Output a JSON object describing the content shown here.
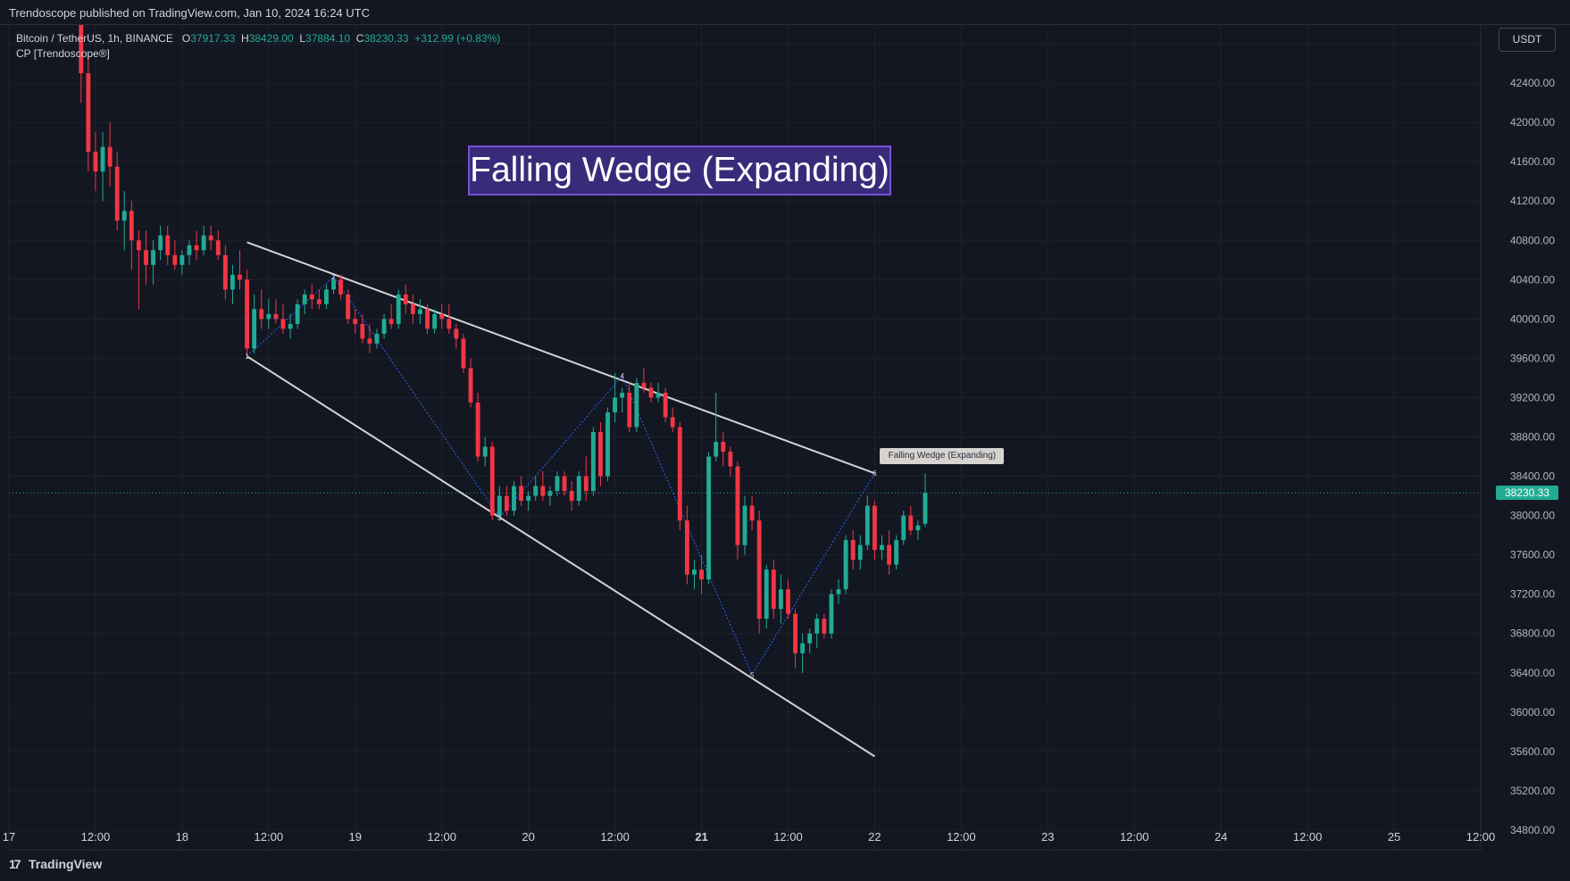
{
  "header": {
    "publish_line": "Trendoscope published on TradingView.com, Jan 10, 2024 16:24 UTC"
  },
  "legend": {
    "symbol": "Bitcoin / TetherUS, 1h, BINANCE",
    "open_label": "O",
    "open_value": "37917.33",
    "high_label": "H",
    "high_value": "38429.00",
    "low_label": "L",
    "low_value": "37884.10",
    "close_label": "C",
    "close_value": "38230.33",
    "change": "+312.99 (+0.83%)",
    "indicator": "CP [Trendoscope®]"
  },
  "currency_button": "USDT",
  "watermark": "TradingView",
  "colors": {
    "background": "#131722",
    "grid": "#1e222d",
    "up": "#22ab94",
    "down": "#f23645",
    "wedge_lines": "#d6d3d0",
    "zigzag": "#2962ff",
    "pattern_label_bg": "#3a2b7a",
    "pattern_label_border": "#7b4fd8"
  },
  "chart_data": {
    "type": "candlestick",
    "title": "Falling Wedge (Expanding)",
    "pattern_tag": "Falling Wedge (Expanding)",
    "last_price": "38230.33",
    "ylim": [
      34600,
      43000
    ],
    "y_ticks": [
      "42800.00",
      "42400.00",
      "42000.00",
      "41600.00",
      "41200.00",
      "40800.00",
      "40400.00",
      "40000.00",
      "39600.00",
      "39200.00",
      "38800.00",
      "38400.00",
      "38000.00",
      "37600.00",
      "37200.00",
      "36800.00",
      "36400.00",
      "36000.00",
      "35600.00",
      "35200.00",
      "34800.00"
    ],
    "x_ticks": [
      "17",
      "12:00",
      "18",
      "12:00",
      "19",
      "12:00",
      "20",
      "12:00",
      "21",
      "12:00",
      "22",
      "12:00",
      "23",
      "12:00",
      "24",
      "12:00",
      "25",
      "12:00"
    ],
    "x_range_hours": [
      0,
      204
    ],
    "upper_line": {
      "start": [
        33,
        40780
      ],
      "end": [
        120,
        38430
      ]
    },
    "lower_line": {
      "start": [
        33,
        39620
      ],
      "end": [
        120,
        35550
      ]
    },
    "zigzag_points": [
      {
        "label": "1",
        "x": 33,
        "y": 39620
      },
      {
        "label": "2",
        "x": 45,
        "y": 40430
      },
      {
        "label": "3",
        "x": 68,
        "y": 37980
      },
      {
        "label": "4",
        "x": 85,
        "y": 39420
      },
      {
        "label": "5",
        "x": 103,
        "y": 36380
      },
      {
        "label": "6",
        "x": 120,
        "y": 38430
      }
    ],
    "candles": [
      {
        "t": 10,
        "o": 43100,
        "h": 43200,
        "l": 42200,
        "c": 42500
      },
      {
        "t": 11,
        "o": 42500,
        "h": 42700,
        "l": 41500,
        "c": 41700
      },
      {
        "t": 12,
        "o": 41700,
        "h": 41900,
        "l": 41300,
        "c": 41500
      },
      {
        "t": 13,
        "o": 41500,
        "h": 41900,
        "l": 41200,
        "c": 41750
      },
      {
        "t": 14,
        "o": 41750,
        "h": 42000,
        "l": 41350,
        "c": 41550
      },
      {
        "t": 15,
        "o": 41550,
        "h": 41700,
        "l": 40900,
        "c": 41000
      },
      {
        "t": 16,
        "o": 41000,
        "h": 41300,
        "l": 40700,
        "c": 41100
      },
      {
        "t": 17,
        "o": 41100,
        "h": 41200,
        "l": 40500,
        "c": 40800
      },
      {
        "t": 18,
        "o": 40800,
        "h": 40900,
        "l": 40100,
        "c": 40700
      },
      {
        "t": 19,
        "o": 40700,
        "h": 40900,
        "l": 40350,
        "c": 40550
      },
      {
        "t": 20,
        "o": 40550,
        "h": 40800,
        "l": 40350,
        "c": 40700
      },
      {
        "t": 21,
        "o": 40700,
        "h": 40950,
        "l": 40600,
        "c": 40850
      },
      {
        "t": 22,
        "o": 40850,
        "h": 40950,
        "l": 40550,
        "c": 40650
      },
      {
        "t": 23,
        "o": 40650,
        "h": 40800,
        "l": 40500,
        "c": 40550
      },
      {
        "t": 24,
        "o": 40550,
        "h": 40700,
        "l": 40450,
        "c": 40650
      },
      {
        "t": 25,
        "o": 40650,
        "h": 40800,
        "l": 40550,
        "c": 40750
      },
      {
        "t": 26,
        "o": 40750,
        "h": 40900,
        "l": 40600,
        "c": 40700
      },
      {
        "t": 27,
        "o": 40700,
        "h": 40950,
        "l": 40650,
        "c": 40850
      },
      {
        "t": 28,
        "o": 40850,
        "h": 40950,
        "l": 40700,
        "c": 40800
      },
      {
        "t": 29,
        "o": 40800,
        "h": 40900,
        "l": 40600,
        "c": 40650
      },
      {
        "t": 30,
        "o": 40650,
        "h": 40750,
        "l": 40200,
        "c": 40300
      },
      {
        "t": 31,
        "o": 40300,
        "h": 40550,
        "l": 40150,
        "c": 40450
      },
      {
        "t": 32,
        "o": 40450,
        "h": 40700,
        "l": 40300,
        "c": 40400
      },
      {
        "t": 33,
        "o": 40400,
        "h": 40500,
        "l": 39600,
        "c": 39700
      },
      {
        "t": 34,
        "o": 39700,
        "h": 40250,
        "l": 39650,
        "c": 40100
      },
      {
        "t": 35,
        "o": 40100,
        "h": 40300,
        "l": 39900,
        "c": 40000
      },
      {
        "t": 36,
        "o": 40000,
        "h": 40200,
        "l": 39900,
        "c": 40050
      },
      {
        "t": 37,
        "o": 40050,
        "h": 40200,
        "l": 39950,
        "c": 40000
      },
      {
        "t": 38,
        "o": 40000,
        "h": 40150,
        "l": 39850,
        "c": 39900
      },
      {
        "t": 39,
        "o": 39900,
        "h": 40050,
        "l": 39800,
        "c": 39950
      },
      {
        "t": 40,
        "o": 39950,
        "h": 40200,
        "l": 39900,
        "c": 40150
      },
      {
        "t": 41,
        "o": 40150,
        "h": 40300,
        "l": 40050,
        "c": 40250
      },
      {
        "t": 42,
        "o": 40250,
        "h": 40350,
        "l": 40100,
        "c": 40200
      },
      {
        "t": 43,
        "o": 40200,
        "h": 40300,
        "l": 40100,
        "c": 40150
      },
      {
        "t": 44,
        "o": 40150,
        "h": 40350,
        "l": 40100,
        "c": 40300
      },
      {
        "t": 45,
        "o": 40300,
        "h": 40450,
        "l": 40250,
        "c": 40400
      },
      {
        "t": 46,
        "o": 40400,
        "h": 40450,
        "l": 40200,
        "c": 40250
      },
      {
        "t": 47,
        "o": 40250,
        "h": 40300,
        "l": 39950,
        "c": 40000
      },
      {
        "t": 48,
        "o": 40000,
        "h": 40100,
        "l": 39850,
        "c": 39950
      },
      {
        "t": 49,
        "o": 39950,
        "h": 40050,
        "l": 39750,
        "c": 39800
      },
      {
        "t": 50,
        "o": 39800,
        "h": 39950,
        "l": 39650,
        "c": 39750
      },
      {
        "t": 51,
        "o": 39750,
        "h": 39900,
        "l": 39700,
        "c": 39850
      },
      {
        "t": 52,
        "o": 39850,
        "h": 40050,
        "l": 39800,
        "c": 40000
      },
      {
        "t": 53,
        "o": 40000,
        "h": 40150,
        "l": 39900,
        "c": 39950
      },
      {
        "t": 54,
        "o": 39950,
        "h": 40300,
        "l": 39900,
        "c": 40250
      },
      {
        "t": 55,
        "o": 40250,
        "h": 40350,
        "l": 40050,
        "c": 40150
      },
      {
        "t": 56,
        "o": 40150,
        "h": 40250,
        "l": 39950,
        "c": 40050
      },
      {
        "t": 57,
        "o": 40050,
        "h": 40200,
        "l": 39950,
        "c": 40100
      },
      {
        "t": 58,
        "o": 40100,
        "h": 40150,
        "l": 39850,
        "c": 39900
      },
      {
        "t": 59,
        "o": 39900,
        "h": 40100,
        "l": 39850,
        "c": 40050
      },
      {
        "t": 60,
        "o": 40050,
        "h": 40150,
        "l": 39900,
        "c": 40000
      },
      {
        "t": 61,
        "o": 40000,
        "h": 40150,
        "l": 39850,
        "c": 39900
      },
      {
        "t": 62,
        "o": 39900,
        "h": 39950,
        "l": 39700,
        "c": 39800
      },
      {
        "t": 63,
        "o": 39800,
        "h": 39850,
        "l": 39450,
        "c": 39500
      },
      {
        "t": 64,
        "o": 39500,
        "h": 39600,
        "l": 39100,
        "c": 39150
      },
      {
        "t": 65,
        "o": 39150,
        "h": 39250,
        "l": 38550,
        "c": 38600
      },
      {
        "t": 66,
        "o": 38600,
        "h": 38800,
        "l": 38500,
        "c": 38700
      },
      {
        "t": 67,
        "o": 38700,
        "h": 38750,
        "l": 37950,
        "c": 38000
      },
      {
        "t": 68,
        "o": 38000,
        "h": 38300,
        "l": 37950,
        "c": 38200
      },
      {
        "t": 69,
        "o": 38200,
        "h": 38300,
        "l": 38000,
        "c": 38050
      },
      {
        "t": 70,
        "o": 38050,
        "h": 38350,
        "l": 38000,
        "c": 38300
      },
      {
        "t": 71,
        "o": 38300,
        "h": 38400,
        "l": 38100,
        "c": 38150
      },
      {
        "t": 72,
        "o": 38150,
        "h": 38250,
        "l": 38050,
        "c": 38200
      },
      {
        "t": 73,
        "o": 38200,
        "h": 38400,
        "l": 38150,
        "c": 38300
      },
      {
        "t": 74,
        "o": 38300,
        "h": 38450,
        "l": 38150,
        "c": 38200
      },
      {
        "t": 75,
        "o": 38200,
        "h": 38300,
        "l": 38100,
        "c": 38250
      },
      {
        "t": 76,
        "o": 38250,
        "h": 38450,
        "l": 38200,
        "c": 38400
      },
      {
        "t": 77,
        "o": 38400,
        "h": 38450,
        "l": 38200,
        "c": 38250
      },
      {
        "t": 78,
        "o": 38250,
        "h": 38350,
        "l": 38050,
        "c": 38150
      },
      {
        "t": 79,
        "o": 38150,
        "h": 38450,
        "l": 38100,
        "c": 38400
      },
      {
        "t": 80,
        "o": 38400,
        "h": 38600,
        "l": 38150,
        "c": 38250
      },
      {
        "t": 81,
        "o": 38250,
        "h": 38900,
        "l": 38200,
        "c": 38850
      },
      {
        "t": 82,
        "o": 38850,
        "h": 38950,
        "l": 38300,
        "c": 38400
      },
      {
        "t": 83,
        "o": 38400,
        "h": 39100,
        "l": 38350,
        "c": 39050
      },
      {
        "t": 84,
        "o": 39050,
        "h": 39450,
        "l": 38950,
        "c": 39200
      },
      {
        "t": 85,
        "o": 39200,
        "h": 39300,
        "l": 39050,
        "c": 39250
      },
      {
        "t": 86,
        "o": 39250,
        "h": 39350,
        "l": 38850,
        "c": 38900
      },
      {
        "t": 87,
        "o": 38900,
        "h": 39400,
        "l": 38850,
        "c": 39350
      },
      {
        "t": 88,
        "o": 39350,
        "h": 39500,
        "l": 39250,
        "c": 39300
      },
      {
        "t": 89,
        "o": 39300,
        "h": 39350,
        "l": 39150,
        "c": 39200
      },
      {
        "t": 90,
        "o": 39200,
        "h": 39350,
        "l": 39150,
        "c": 39250
      },
      {
        "t": 91,
        "o": 39250,
        "h": 39300,
        "l": 38950,
        "c": 39000
      },
      {
        "t": 92,
        "o": 39000,
        "h": 39100,
        "l": 38850,
        "c": 38900
      },
      {
        "t": 93,
        "o": 38900,
        "h": 38950,
        "l": 37850,
        "c": 37950
      },
      {
        "t": 94,
        "o": 37950,
        "h": 38100,
        "l": 37300,
        "c": 37400
      },
      {
        "t": 95,
        "o": 37400,
        "h": 37550,
        "l": 37250,
        "c": 37450
      },
      {
        "t": 96,
        "o": 37450,
        "h": 37600,
        "l": 37200,
        "c": 37350
      },
      {
        "t": 97,
        "o": 37350,
        "h": 38650,
        "l": 37300,
        "c": 38600
      },
      {
        "t": 98,
        "o": 38600,
        "h": 39250,
        "l": 38550,
        "c": 38750
      },
      {
        "t": 99,
        "o": 38750,
        "h": 38850,
        "l": 38500,
        "c": 38650
      },
      {
        "t": 100,
        "o": 38650,
        "h": 38700,
        "l": 38400,
        "c": 38500
      },
      {
        "t": 101,
        "o": 38500,
        "h": 38550,
        "l": 37550,
        "c": 37700
      },
      {
        "t": 102,
        "o": 37700,
        "h": 38200,
        "l": 37600,
        "c": 38100
      },
      {
        "t": 103,
        "o": 38100,
        "h": 38200,
        "l": 37850,
        "c": 37950
      },
      {
        "t": 104,
        "o": 37950,
        "h": 38050,
        "l": 36800,
        "c": 36950
      },
      {
        "t": 105,
        "o": 36950,
        "h": 37500,
        "l": 36850,
        "c": 37450
      },
      {
        "t": 106,
        "o": 37450,
        "h": 37550,
        "l": 36950,
        "c": 37050
      },
      {
        "t": 107,
        "o": 37050,
        "h": 37400,
        "l": 36900,
        "c": 37250
      },
      {
        "t": 108,
        "o": 37250,
        "h": 37350,
        "l": 36950,
        "c": 37000
      },
      {
        "t": 109,
        "o": 37000,
        "h": 37050,
        "l": 36450,
        "c": 36600
      },
      {
        "t": 110,
        "o": 36600,
        "h": 36800,
        "l": 36400,
        "c": 36700
      },
      {
        "t": 111,
        "o": 36700,
        "h": 36850,
        "l": 36600,
        "c": 36800
      },
      {
        "t": 112,
        "o": 36800,
        "h": 37000,
        "l": 36650,
        "c": 36950
      },
      {
        "t": 113,
        "o": 36950,
        "h": 37000,
        "l": 36750,
        "c": 36800
      },
      {
        "t": 114,
        "o": 36800,
        "h": 37250,
        "l": 36750,
        "c": 37200
      },
      {
        "t": 115,
        "o": 37200,
        "h": 37350,
        "l": 37100,
        "c": 37250
      },
      {
        "t": 116,
        "o": 37250,
        "h": 37800,
        "l": 37200,
        "c": 37750
      },
      {
        "t": 117,
        "o": 37750,
        "h": 37850,
        "l": 37450,
        "c": 37550
      },
      {
        "t": 118,
        "o": 37550,
        "h": 37800,
        "l": 37450,
        "c": 37700
      },
      {
        "t": 119,
        "o": 37700,
        "h": 38200,
        "l": 37650,
        "c": 38100
      },
      {
        "t": 120,
        "o": 38100,
        "h": 38150,
        "l": 37550,
        "c": 37650
      },
      {
        "t": 121,
        "o": 37650,
        "h": 37800,
        "l": 37550,
        "c": 37700
      },
      {
        "t": 122,
        "o": 37700,
        "h": 37850,
        "l": 37400,
        "c": 37500
      },
      {
        "t": 123,
        "o": 37500,
        "h": 37800,
        "l": 37450,
        "c": 37750
      },
      {
        "t": 124,
        "o": 37750,
        "h": 38050,
        "l": 37700,
        "c": 38000
      },
      {
        "t": 125,
        "o": 38000,
        "h": 38100,
        "l": 37800,
        "c": 37850
      },
      {
        "t": 126,
        "o": 37850,
        "h": 37950,
        "l": 37750,
        "c": 37900
      },
      {
        "t": 127,
        "o": 37917,
        "h": 38429,
        "l": 37884,
        "c": 38230
      }
    ]
  }
}
